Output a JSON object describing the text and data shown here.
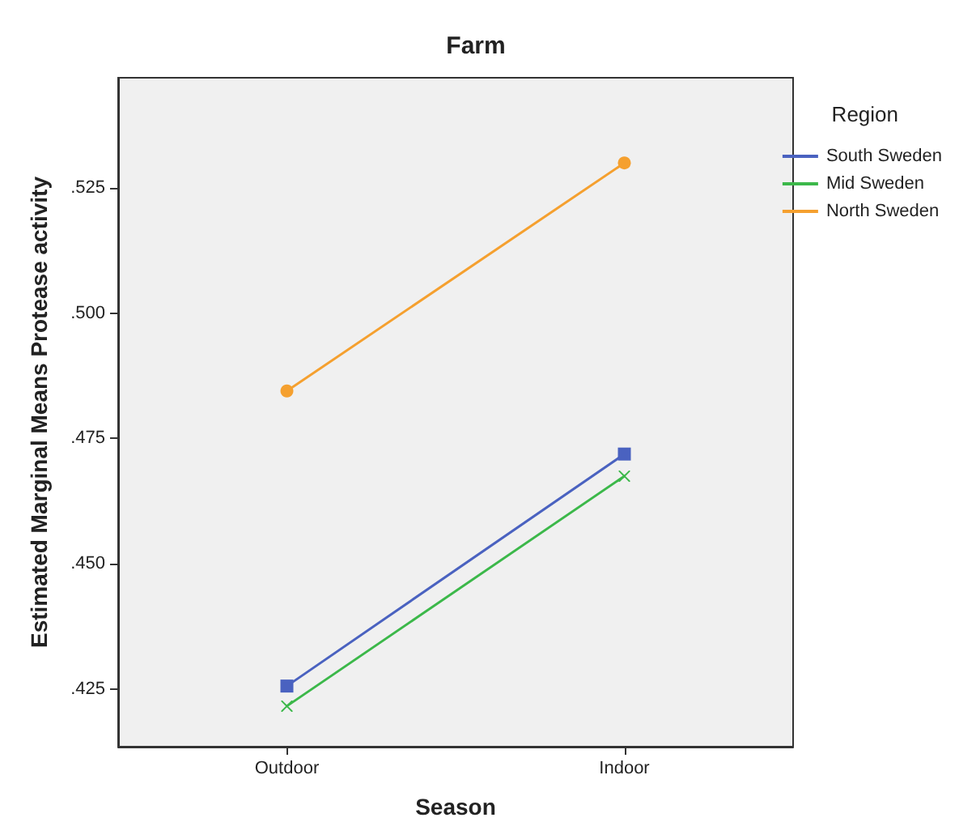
{
  "chart_data": {
    "type": "line",
    "title": "Farm",
    "xlabel": "Season",
    "ylabel": "Estimated Marginal Means Protease activity",
    "legend_title": "Region",
    "categories": [
      "Outdoor",
      "Indoor"
    ],
    "series": [
      {
        "name": "South Sweden",
        "color": "#4a62c0",
        "marker": "square",
        "values": [
          0.4256,
          0.4719
        ]
      },
      {
        "name": "Mid Sweden",
        "color": "#3cb84a",
        "marker": "cross",
        "values": [
          0.4216,
          0.4675
        ]
      },
      {
        "name": "North Sweden",
        "color": "#f5a02f",
        "marker": "circle",
        "values": [
          0.4845,
          0.53
        ]
      }
    ],
    "ylim": [
      0.4135,
      0.547
    ],
    "yticks": [
      {
        "value": 0.425,
        "label": ".425"
      },
      {
        "value": 0.45,
        "label": ".450"
      },
      {
        "value": 0.475,
        "label": ".475"
      },
      {
        "value": 0.5,
        "label": ".500"
      },
      {
        "value": 0.525,
        "label": ".525"
      }
    ],
    "grid": false,
    "legend": "top right",
    "line_style": "solid"
  }
}
